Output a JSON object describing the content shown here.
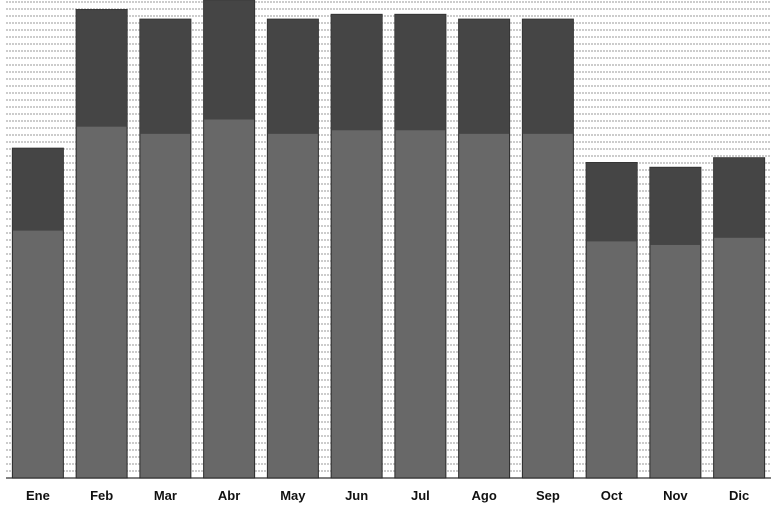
{
  "chart_data": {
    "type": "bar",
    "title": "",
    "xlabel": "",
    "ylabel": "",
    "categories": [
      "Ene",
      "Feb",
      "Mar",
      "Abr",
      "May",
      "Jun",
      "Jul",
      "Ago",
      "Sep",
      "Oct",
      "Nov",
      "Dic"
    ],
    "values": [
      69,
      98,
      96,
      100,
      96,
      97,
      97,
      96,
      96,
      66,
      65,
      67
    ],
    "ylim": [
      0,
      100
    ],
    "grid": true,
    "legend": "none",
    "colors": {
      "bar_fill": "#686868",
      "bar_top": "#3f3f3f",
      "bar_edge": "#2a2a2a",
      "gridline": "#9a9a9a",
      "tick_text": "#111111"
    }
  }
}
